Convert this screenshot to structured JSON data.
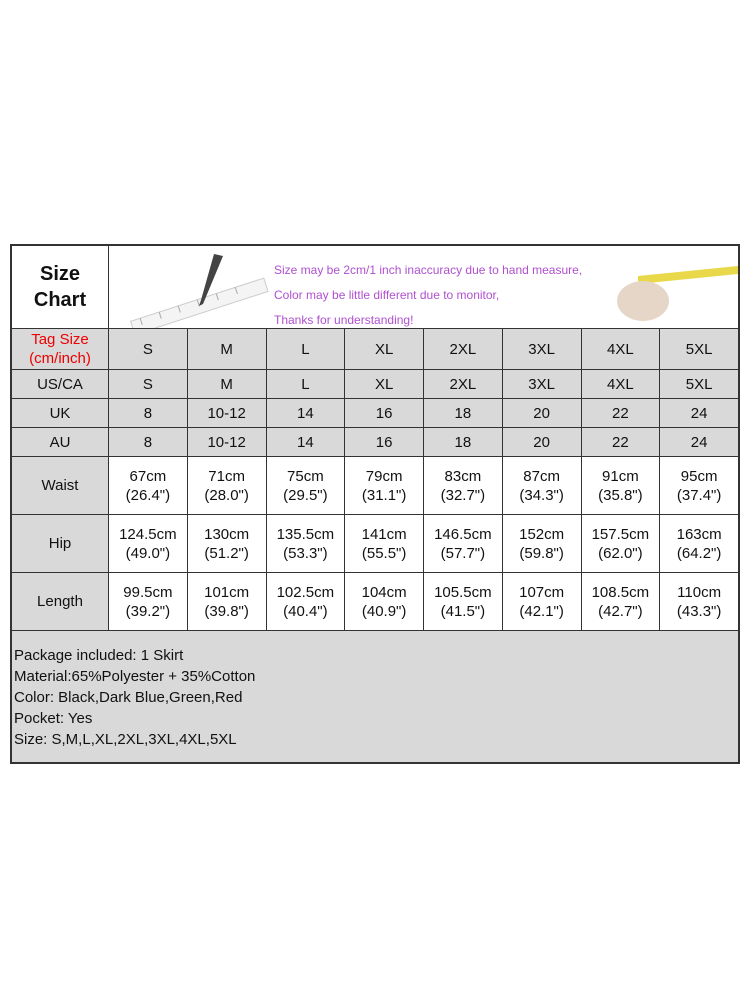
{
  "title_lines": [
    "Size",
    "Chart"
  ],
  "notice": [
    "Size may be 2cm/1 inch inaccuracy due to hand measure,",
    "Color may be little different due to monitor,",
    "Thanks for understanding!"
  ],
  "colors": {
    "notice": "#b050d0",
    "tag_label": "#e00000",
    "cell_gray": "#d9d9d9"
  },
  "rows": [
    {
      "label": [
        "Tag Size",
        "(cm/inch)"
      ],
      "style": "gray",
      "cells": [
        [
          "S"
        ],
        [
          "M"
        ],
        [
          "L"
        ],
        [
          "XL"
        ],
        [
          "2XL"
        ],
        [
          "3XL"
        ],
        [
          "4XL"
        ],
        [
          "5XL"
        ]
      ]
    },
    {
      "label": [
        "US/CA"
      ],
      "style": "gray",
      "cells": [
        [
          "S"
        ],
        [
          "M"
        ],
        [
          "L"
        ],
        [
          "XL"
        ],
        [
          "2XL"
        ],
        [
          "3XL"
        ],
        [
          "4XL"
        ],
        [
          "5XL"
        ]
      ]
    },
    {
      "label": [
        "UK"
      ],
      "style": "gray",
      "cells": [
        [
          "8"
        ],
        [
          "10-12"
        ],
        [
          "14"
        ],
        [
          "16"
        ],
        [
          "18"
        ],
        [
          "20"
        ],
        [
          "22"
        ],
        [
          "24"
        ]
      ]
    },
    {
      "label": [
        "AU"
      ],
      "style": "gray",
      "cells": [
        [
          "8"
        ],
        [
          "10-12"
        ],
        [
          "14"
        ],
        [
          "16"
        ],
        [
          "18"
        ],
        [
          "20"
        ],
        [
          "22"
        ],
        [
          "24"
        ]
      ]
    },
    {
      "label": [
        "Waist"
      ],
      "style": "white",
      "cells": [
        [
          "67cm",
          "(26.4\")"
        ],
        [
          "71cm",
          "(28.0\")"
        ],
        [
          "75cm",
          "(29.5\")"
        ],
        [
          "79cm",
          "(31.1\")"
        ],
        [
          "83cm",
          "(32.7\")"
        ],
        [
          "87cm",
          "(34.3\")"
        ],
        [
          "91cm",
          "(35.8\")"
        ],
        [
          "95cm",
          "(37.4\")"
        ]
      ]
    },
    {
      "label": [
        "Hip"
      ],
      "style": "white",
      "cells": [
        [
          "124.5cm",
          "(49.0\")"
        ],
        [
          "130cm",
          "(51.2\")"
        ],
        [
          "135.5cm",
          "(53.3\")"
        ],
        [
          "141cm",
          "(55.5\")"
        ],
        [
          "146.5cm",
          "(57.7\")"
        ],
        [
          "152cm",
          "(59.8\")"
        ],
        [
          "157.5cm",
          "(62.0\")"
        ],
        [
          "163cm",
          "(64.2\")"
        ]
      ]
    },
    {
      "label": [
        "Length"
      ],
      "style": "white",
      "cells": [
        [
          "99.5cm",
          "(39.2\")"
        ],
        [
          "101cm",
          "(39.8\")"
        ],
        [
          "102.5cm",
          "(40.4\")"
        ],
        [
          "104cm",
          "(40.9\")"
        ],
        [
          "105.5cm",
          "(41.5\")"
        ],
        [
          "107cm",
          "(42.1\")"
        ],
        [
          "108.5cm",
          "(42.7\")"
        ],
        [
          "110cm",
          "(43.3\")"
        ]
      ]
    }
  ],
  "notes": [
    "Package included: 1 Skirt",
    "Material:65%Polyester + 35%Cotton",
    "Color: Black,Dark Blue,Green,Red",
    "Pocket: Yes",
    "Size: S,M,L,XL,2XL,3XL,4XL,5XL"
  ]
}
